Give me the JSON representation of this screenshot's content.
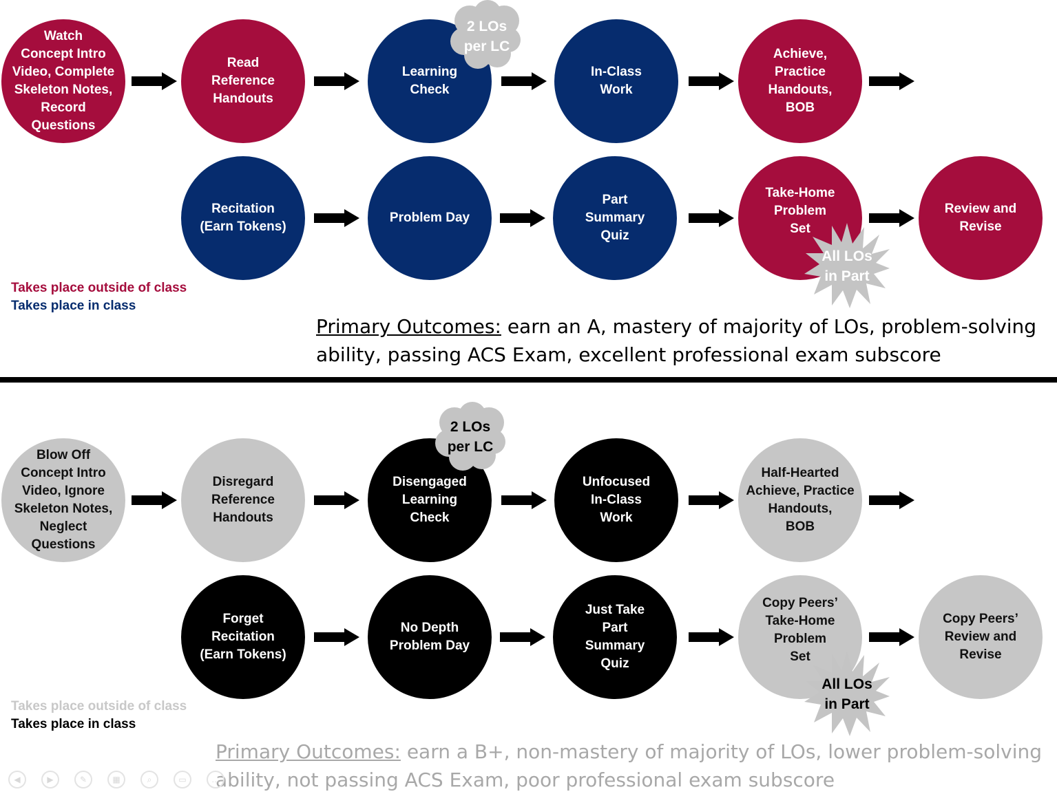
{
  "top_section": {
    "nodes": [
      {
        "id": "watch",
        "label": "Watch\nConcept Intro\nVideo,  Complete\nSkeleton Notes,\nRecord\nQuestions",
        "kind": "outside"
      },
      {
        "id": "read",
        "label": "Read\nReference\nHandouts",
        "kind": "outside"
      },
      {
        "id": "learning-check",
        "label": "Learning\nCheck",
        "kind": "inside"
      },
      {
        "id": "in-class",
        "label": "In-Class\nWork",
        "kind": "inside"
      },
      {
        "id": "achieve",
        "label": "Achieve,\nPractice\nHandouts,\nBOB",
        "kind": "outside"
      },
      {
        "id": "recitation",
        "label": "Recitation\n(Earn Tokens)",
        "kind": "inside"
      },
      {
        "id": "problem-day",
        "label": "Problem Day",
        "kind": "inside"
      },
      {
        "id": "quiz",
        "label": "Part\nSummary\nQuiz",
        "kind": "inside"
      },
      {
        "id": "take-home",
        "label": "Take-Home\nProblem\nSet",
        "kind": "outside"
      },
      {
        "id": "review",
        "label": "Review and\nRevise",
        "kind": "outside"
      }
    ],
    "cloud_badge": "2 LOs\nper LC",
    "burst_badge": "All LOs\nin Part",
    "legend_outside": "Takes place outside of class",
    "legend_inside": "Takes place in class",
    "outcome_heading": "Primary Outcomes:",
    "outcome_line1": " earn an A, mastery of majority of LOs, problem-solving",
    "outcome_line2": "ability, passing ACS Exam, excellent professional exam subscore"
  },
  "bottom_section": {
    "nodes": [
      {
        "id": "blow-off",
        "label": "Blow Off\nConcept Intro\nVideo,  Ignore\nSkeleton Notes,\nNeglect\nQuestions",
        "kind": "outside"
      },
      {
        "id": "disregard",
        "label": "Disregard\nReference\nHandouts",
        "kind": "outside"
      },
      {
        "id": "disengaged",
        "label": "Disengaged\nLearning\nCheck",
        "kind": "inside"
      },
      {
        "id": "unfocused",
        "label": "Unfocused\nIn-Class\nWork",
        "kind": "inside"
      },
      {
        "id": "half-hearted",
        "label": "Half-Hearted\nAchieve, Practice\nHandouts,\nBOB",
        "kind": "outside"
      },
      {
        "id": "forget-recitation",
        "label": "Forget\nRecitation\n(Earn Tokens)",
        "kind": "inside"
      },
      {
        "id": "no-depth",
        "label": "No Depth\nProblem Day",
        "kind": "inside"
      },
      {
        "id": "just-take",
        "label": "Just Take\nPart\nSummary\nQuiz",
        "kind": "inside"
      },
      {
        "id": "copy-take-home",
        "label": "Copy Peers’\nTake-Home\nProblem\nSet",
        "kind": "outside"
      },
      {
        "id": "copy-review",
        "label": "Copy Peers’\nReview and\nRevise",
        "kind": "outside"
      }
    ],
    "cloud_badge": "2 LOs\nper LC",
    "burst_badge": "All LOs\nin Part",
    "legend_outside": "Takes place outside of class",
    "legend_inside": "Takes place in class",
    "outcome_heading": "Primary Outcomes:",
    "outcome_line1": " earn a B+, non-mastery of majority of LOs, lower problem-solving",
    "outcome_line2": "ability, not passing ACS Exam, poor professional exam subscore"
  },
  "colors": {
    "outside_top": "#a50d3d",
    "inside_top": "#062c6e",
    "outside_bottom": "#c6c6c6",
    "inside_bottom": "#000000",
    "badge": "#c4c4c4",
    "outcome_bottom_text": "#a8a8a8"
  },
  "toolbar_icons": [
    "previous-icon",
    "next-icon",
    "pen-icon",
    "slides-icon",
    "zoom-icon",
    "subtitles-icon",
    "more-icon"
  ]
}
